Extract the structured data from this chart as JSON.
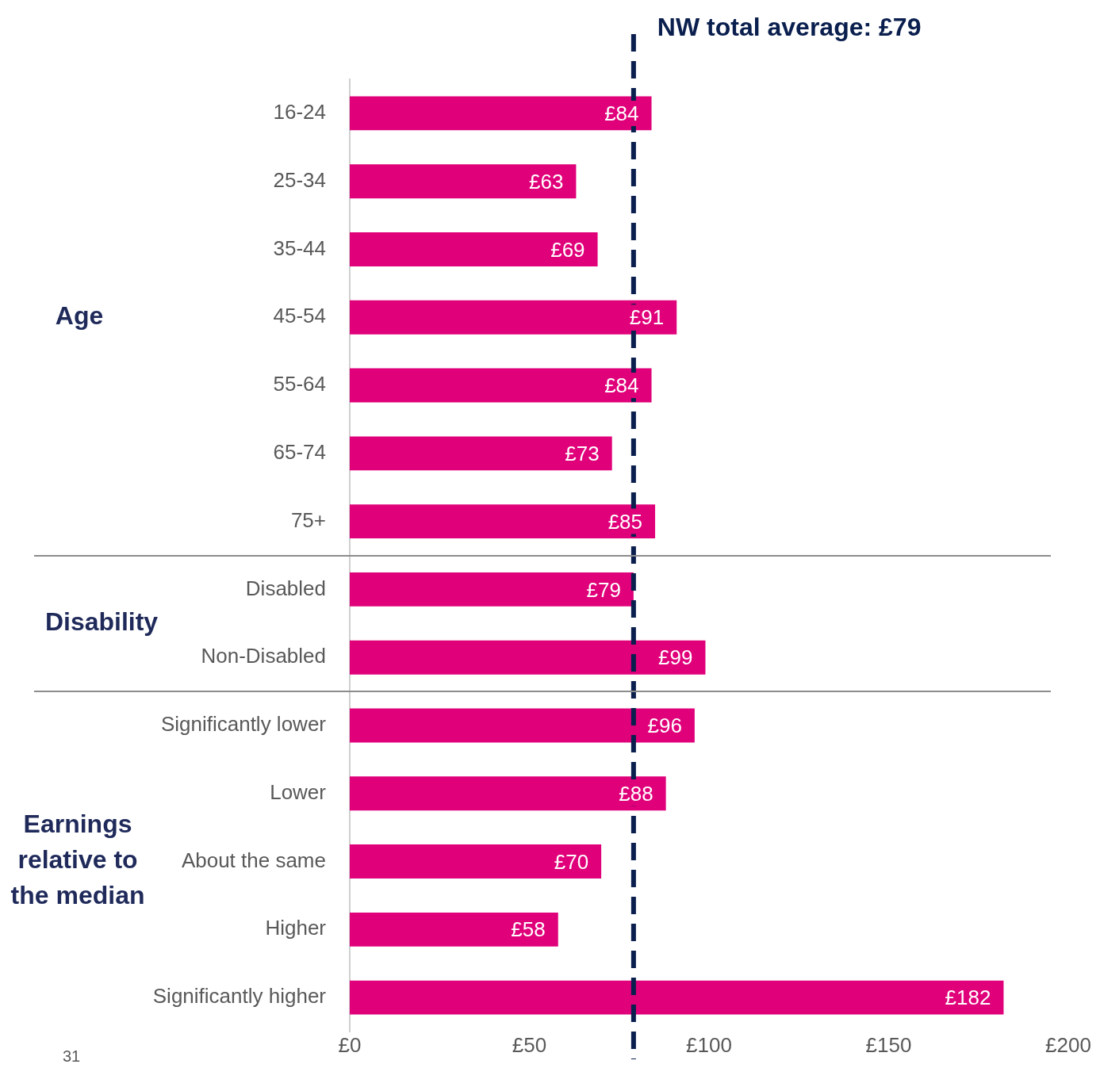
{
  "chart_data": {
    "type": "bar",
    "orientation": "horizontal",
    "categories": [
      "16-24",
      "25-34",
      "35-44",
      "45-54",
      "55-64",
      "65-74",
      "75+",
      "Disabled",
      "Non-Disabled",
      "Significantly lower",
      "Lower",
      "About the same",
      "Higher",
      "Significantly higher"
    ],
    "values": [
      84,
      63,
      69,
      91,
      84,
      73,
      85,
      79,
      99,
      96,
      88,
      70,
      58,
      182
    ],
    "value_labels": [
      "£84",
      "£63",
      "£69",
      "£91",
      "£84",
      "£73",
      "£85",
      "£79",
      "£99",
      "£96",
      "£88",
      "£70",
      "£58",
      "£182"
    ],
    "color": "#e0007a",
    "xlim": [
      0,
      200
    ],
    "xticks": [
      {
        "value": 0,
        "label": "£0"
      },
      {
        "value": 50,
        "label": "£50"
      },
      {
        "value": 100,
        "label": "£100"
      },
      {
        "value": 150,
        "label": "£150"
      },
      {
        "value": 200,
        "label": "£200"
      }
    ],
    "ref_lines": [
      {
        "axis": "x",
        "value": 79,
        "label": "NW total average: £79",
        "color": "#0a1f4e",
        "line_style": "dashed"
      }
    ],
    "annotations": [
      "Age",
      "Disability",
      "Earnings relative to the median",
      "31"
    ],
    "grid": false,
    "legend": false
  }
}
